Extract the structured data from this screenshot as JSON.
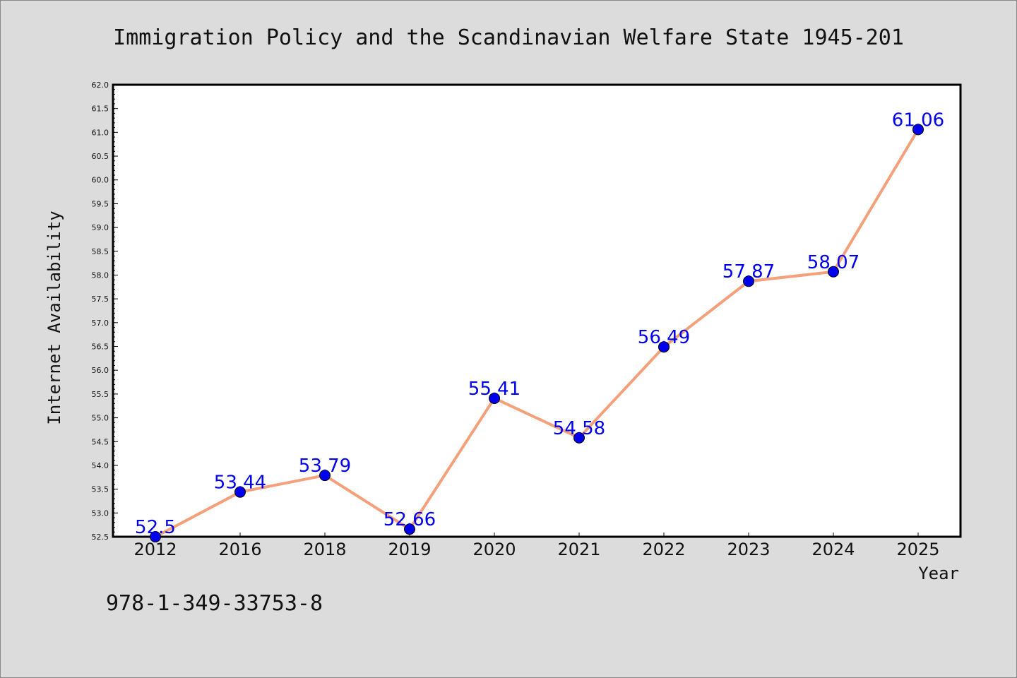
{
  "chart_data": {
    "type": "line",
    "title": "Immigration Policy and the Scandinavian Welfare State 1945-201",
    "xlabel": "Year",
    "ylabel": "Internet Availability",
    "categories": [
      "2012",
      "2016",
      "2018",
      "2019",
      "2020",
      "2021",
      "2022",
      "2023",
      "2024",
      "2025"
    ],
    "values": [
      52.5,
      53.44,
      53.79,
      52.66,
      55.41,
      54.58,
      56.49,
      57.87,
      58.07,
      61.06
    ],
    "data_labels": [
      "52.5",
      "53.44",
      "53.79",
      "52.66",
      "55.41",
      "54.58",
      "56.49",
      "57.87",
      "58.07",
      "61.06"
    ],
    "ylim": [
      52.5,
      62.0
    ],
    "yticks": [
      "52.5",
      "53.0",
      "53.5",
      "54.0",
      "54.5",
      "55.0",
      "55.5",
      "56.0",
      "56.5",
      "57.0",
      "57.5",
      "58.0",
      "58.5",
      "59.0",
      "59.5",
      "60.0",
      "60.5",
      "61.0",
      "61.5",
      "62.0"
    ],
    "grid": false,
    "line_color": "#f4a07a",
    "marker_color": "#0000ee",
    "label_color": "#0000ee",
    "background_color": "#dcdcdc",
    "plot_background": "#ffffff"
  },
  "footer": {
    "isbn": "978-1-349-33753-8"
  }
}
